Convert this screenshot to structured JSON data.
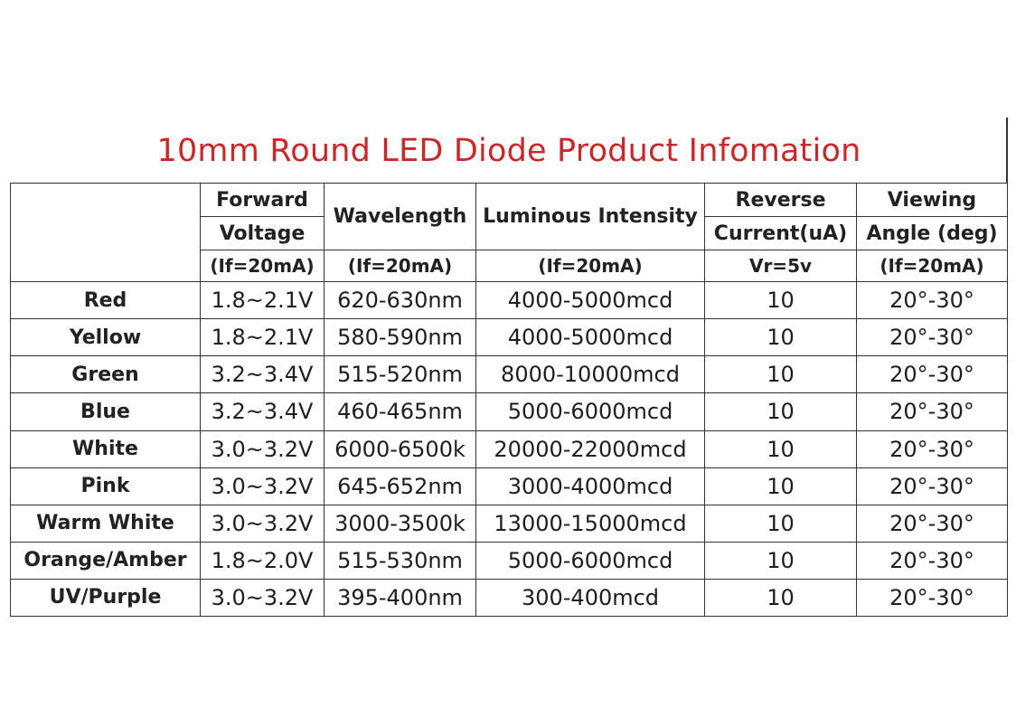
{
  "title": "10mm Round LED Diode Product Infomation",
  "headers": {
    "forward_top": "Forward",
    "forward_mid": "Voltage",
    "forward_cond": "(If=20mA)",
    "wavelength": "Wavelength",
    "wavelength_cond": "(If=20mA)",
    "luminous": "Luminous Intensity",
    "luminous_cond": "(If=20mA)",
    "reverse_top": "Reverse",
    "reverse_mid": "Current(uA)",
    "reverse_cond": "Vr=5v",
    "viewing_top": "Viewing",
    "viewing_mid": "Angle (deg)",
    "viewing_cond": "(If=20mA)"
  },
  "rows": [
    {
      "color": "Red",
      "voltage": "1.8~2.1V",
      "wavelength": "620-630nm",
      "intensity": "4000-5000mcd",
      "current": "10",
      "angle": "20°-30°"
    },
    {
      "color": "Yellow",
      "voltage": "1.8~2.1V",
      "wavelength": "580-590nm",
      "intensity": "4000-5000mcd",
      "current": "10",
      "angle": "20°-30°"
    },
    {
      "color": "Green",
      "voltage": "3.2~3.4V",
      "wavelength": "515-520nm",
      "intensity": "8000-10000mcd",
      "current": "10",
      "angle": "20°-30°"
    },
    {
      "color": "Blue",
      "voltage": "3.2~3.4V",
      "wavelength": "460-465nm",
      "intensity": "5000-6000mcd",
      "current": "10",
      "angle": "20°-30°"
    },
    {
      "color": "White",
      "voltage": "3.0~3.2V",
      "wavelength": "6000-6500k",
      "intensity": "20000-22000mcd",
      "current": "10",
      "angle": "20°-30°"
    },
    {
      "color": "Pink",
      "voltage": "3.0~3.2V",
      "wavelength": "645-652nm",
      "intensity": "3000-4000mcd",
      "current": "10",
      "angle": "20°-30°"
    },
    {
      "color": "Warm White",
      "voltage": "3.0~3.2V",
      "wavelength": "3000-3500k",
      "intensity": "13000-15000mcd",
      "current": "10",
      "angle": "20°-30°"
    },
    {
      "color": "Orange/Amber",
      "voltage": "1.8~2.0V",
      "wavelength": "515-530nm",
      "intensity": "5000-6000mcd",
      "current": "10",
      "angle": "20°-30°"
    },
    {
      "color": "UV/Purple",
      "voltage": "3.0~3.2V",
      "wavelength": "395-400nm",
      "intensity": "300-400mcd",
      "current": "10",
      "angle": "20°-30°"
    }
  ],
  "colors": {
    "title": "#c8282a",
    "border": "#333333",
    "text": "#1a1a1a"
  }
}
